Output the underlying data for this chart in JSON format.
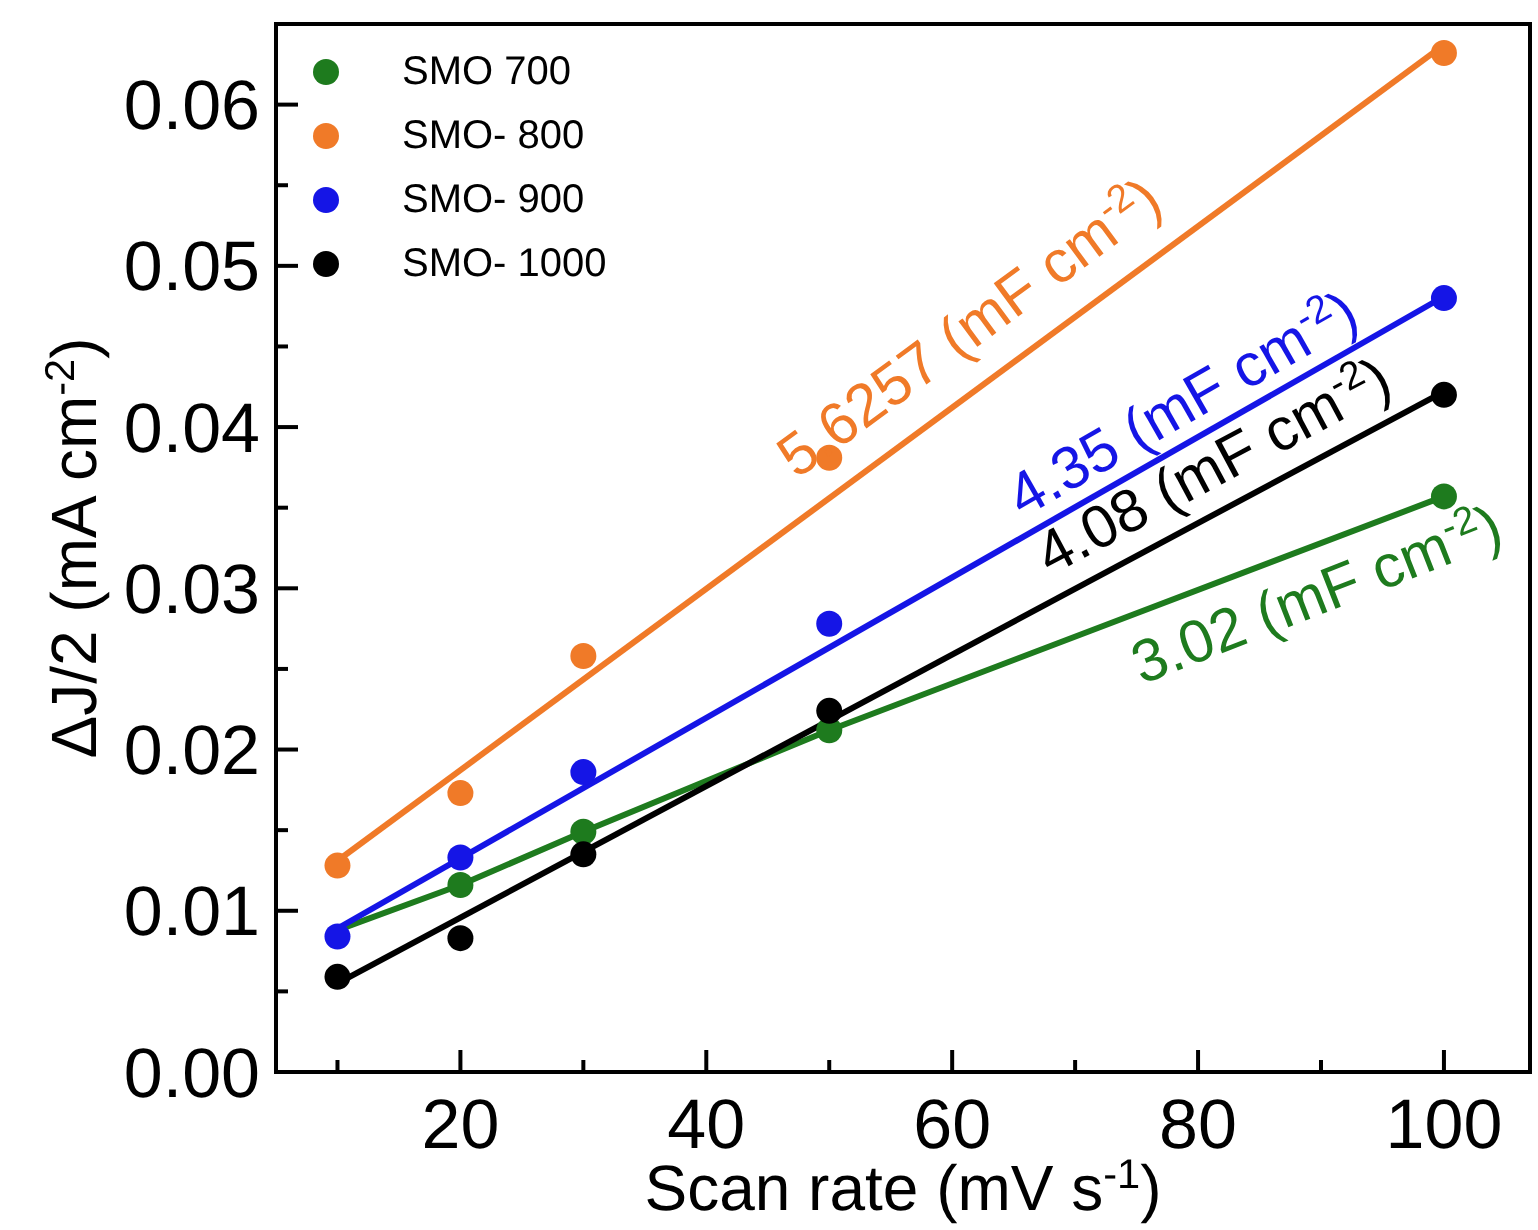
{
  "chart_data": {
    "type": "scatter",
    "xlabel": "Scan rate (mV s$^{-1}$)",
    "ylabel": "ΔJ/2 (mA cm$^{-2}$)",
    "x": [
      10,
      20,
      30,
      50,
      100
    ],
    "xlim": [
      5,
      107
    ],
    "ylim": [
      0,
      0.065
    ],
    "xticks": [
      {
        "value": 10,
        "label": null
      },
      20,
      {
        "value": 30,
        "label": null
      },
      40,
      {
        "value": 50,
        "label": null
      },
      60,
      {
        "value": 70,
        "label": null
      },
      80,
      {
        "value": 90,
        "label": null
      },
      100
    ],
    "yticks": [
      {
        "value": 0,
        "label": "0.00"
      },
      {
        "value": 0.005,
        "label": null
      },
      0.01,
      {
        "value": 0.015,
        "label": null
      },
      0.02,
      {
        "value": 0.025,
        "label": null
      },
      0.03,
      {
        "value": 0.035,
        "label": null
      },
      0.04,
      {
        "value": 0.045,
        "label": null
      },
      0.05,
      {
        "value": 0.055,
        "label": null
      },
      0.06
    ],
    "grid": false,
    "legend": "top left",
    "marker": "circle",
    "series": [
      {
        "name": "SMO 700",
        "color": "#1e7b1e",
        "values": [
          null,
          0.0116,
          0.0149,
          0.0212,
          0.0357
        ]
      },
      {
        "name": "SMO- 800",
        "color": "#f07a28",
        "values": [
          0.0128,
          0.0173,
          0.0258,
          0.0381,
          0.0632
        ]
      },
      {
        "name": "SMO- 900",
        "color": "#1515e6",
        "values": [
          0.0084,
          0.0133,
          0.0186,
          0.0278,
          0.048
        ]
      },
      {
        "name": "SMO- 1000",
        "color": "#000000",
        "values": [
          0.0059,
          0.0083,
          0.0135,
          0.0224,
          0.042
        ]
      },
      {
        "name": "3.02 (mF cm$^{-2}$)",
        "type": "line",
        "marker": "none",
        "color": "#1e7b1e",
        "x": [
          10,
          20,
          30,
          50,
          100
        ],
        "values": [
          0.0088,
          0.0116,
          0.0149,
          0.0212,
          0.0357
        ]
      },
      {
        "name": "5.6257 (mF cm$^{-2}$)",
        "type": "line",
        "marker": "none",
        "color": "#f07a28",
        "x": [
          10,
          100
        ],
        "values": [
          0.0131,
          0.0637
        ]
      },
      {
        "name": "4.35 (mF cm$^{-2}$)",
        "type": "line",
        "marker": "none",
        "color": "#1515e6",
        "x": [
          10,
          100
        ],
        "values": [
          0.0089,
          0.0481
        ]
      },
      {
        "name": "4.08 (mF cm$^{-2}$)",
        "type": "line",
        "marker": "none",
        "color": "#000000",
        "x": [
          10,
          100
        ],
        "values": [
          0.0055,
          0.0422
        ]
      }
    ]
  }
}
